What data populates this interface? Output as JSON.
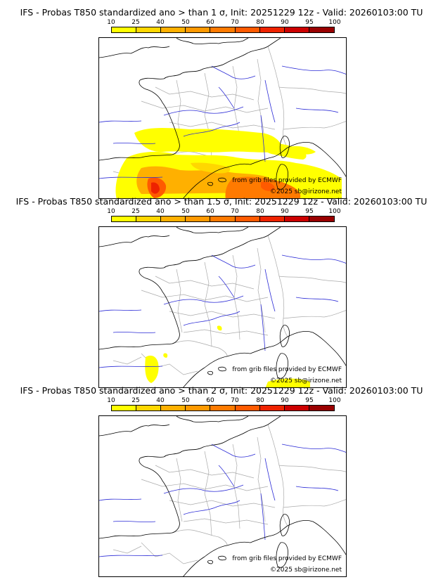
{
  "panels": [
    {
      "title": "IFS - Probas T850  standardized ano > than 1 σ, Init: 20251229 12z - Valid: 20260103:00 TU",
      "credit_source": "from grib files provided by ECMWF",
      "credit_copyright": "©2025 sb@irizone.net"
    },
    {
      "title": "IFS - Probas T850  standardized ano > than 1.5 σ, Init: 20251229 12z - Valid: 20260103:00 TU",
      "credit_source": "from grib files provided by ECMWF",
      "credit_copyright": "©2025 sb@irizone.net"
    },
    {
      "title": "IFS - Probas T850  standardized ano > than 2 σ, Init: 20251229 12z - Valid: 20260103:00 TU",
      "credit_source": "from grib files provided by ECMWF",
      "credit_copyright": "©2025 sb@irizone.net"
    }
  ],
  "colorbar": {
    "labels": [
      "10",
      "25",
      "40",
      "50",
      "60",
      "70",
      "80",
      "90",
      "95",
      "100"
    ],
    "colors": [
      "#ffff00",
      "#ffd700",
      "#ffb000",
      "#ff9900",
      "#ff7a00",
      "#ff5a00",
      "#ee2200",
      "#cc0000",
      "#990000",
      "#660000"
    ]
  },
  "map_colors": {
    "coast": "#000000",
    "borders": "#aaaaaa",
    "rivers": "#2b2bd6"
  }
}
